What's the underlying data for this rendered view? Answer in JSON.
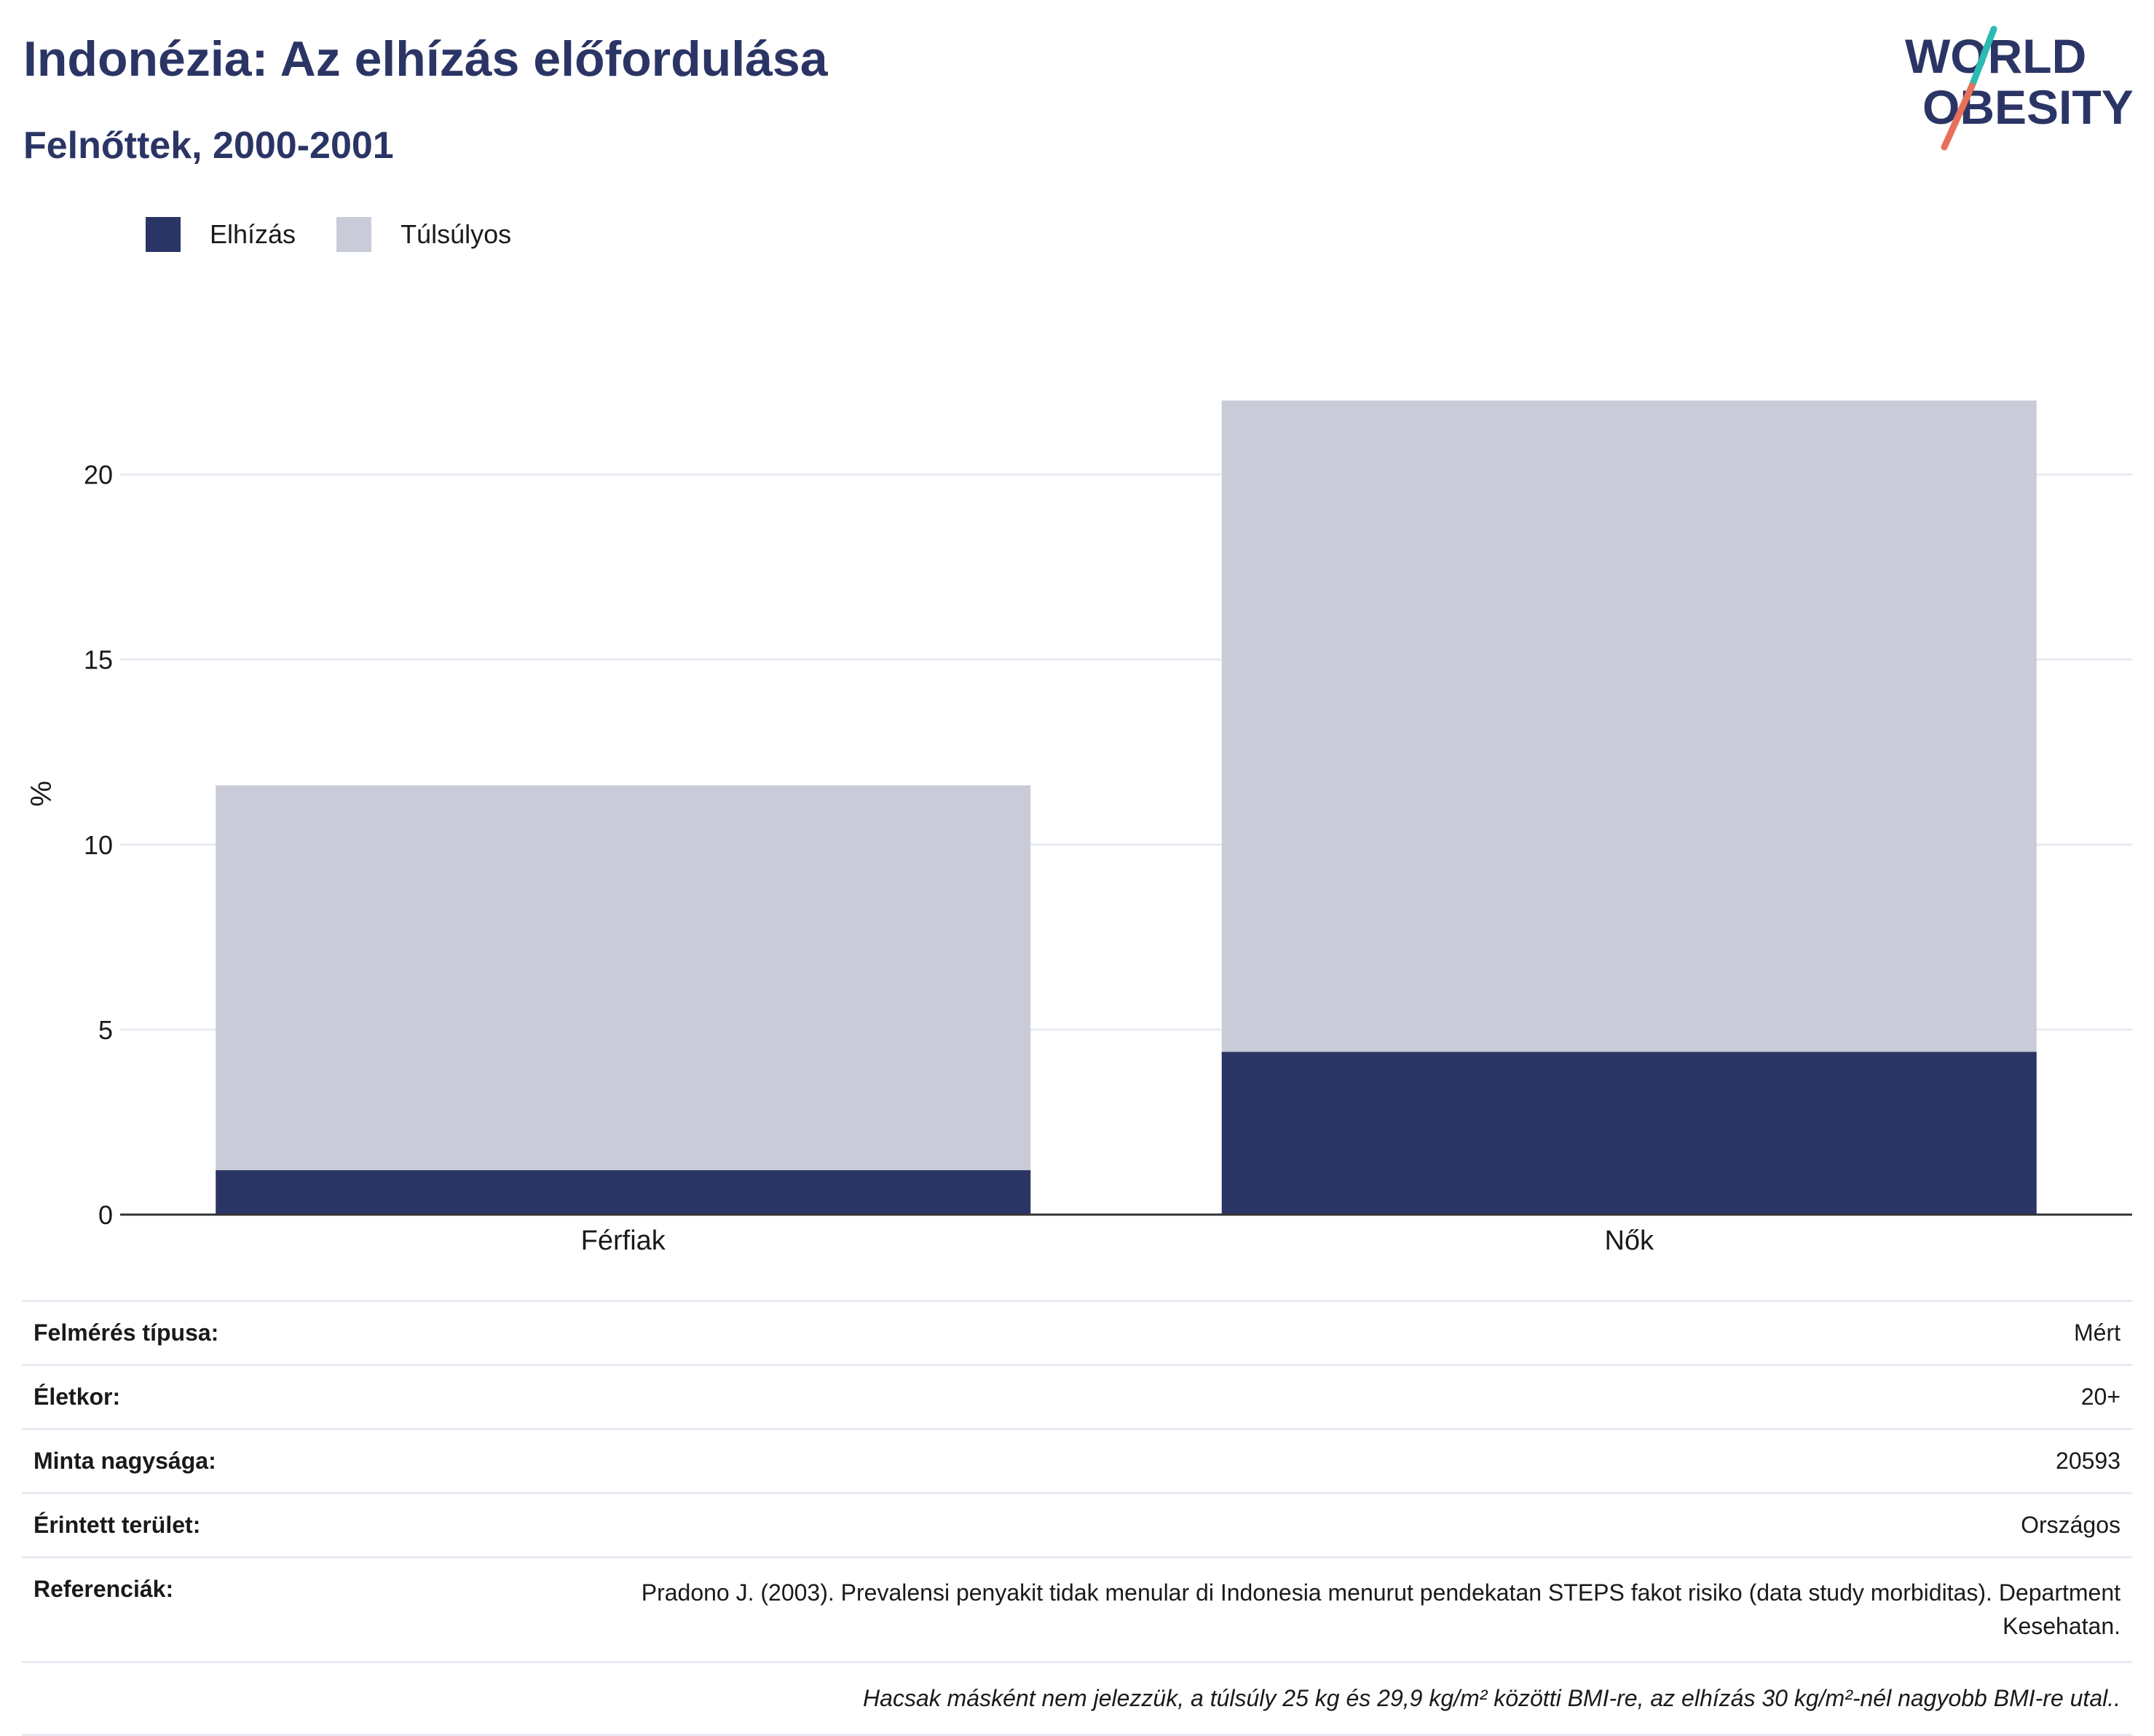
{
  "header": {
    "title": "Indonézia: Az elhízás előfordulása",
    "subtitle": "Felnőttek, 2000-2001"
  },
  "logo": {
    "line1": "WORLD",
    "line2": "OBESITY",
    "accent_teal": "#2bbbb3",
    "accent_coral": "#e8705a",
    "text_color": "#2b3565"
  },
  "legend": [
    {
      "label": "Elhízás",
      "color": "#2b3565"
    },
    {
      "label": "Túlsúlyos",
      "color": "#c9ccd8"
    }
  ],
  "chart_data": {
    "type": "bar",
    "stacked": true,
    "categories": [
      "Férfiak",
      "Nők"
    ],
    "series": [
      {
        "name": "Elhízás",
        "values": [
          1.2,
          4.4
        ],
        "color": "#2b3565"
      },
      {
        "name": "Túlsúlyos",
        "values": [
          10.4,
          17.6
        ],
        "color": "#c9ccd8"
      }
    ],
    "ylabel": "%",
    "ylim": [
      0,
      22
    ],
    "yticks": [
      0,
      5,
      10,
      15,
      20
    ],
    "grid": true
  },
  "info": {
    "rows": [
      {
        "key": "Felmérés típusa:",
        "value": "Mért"
      },
      {
        "key": "Életkor:",
        "value": "20+"
      },
      {
        "key": "Minta nagysága:",
        "value": "20593"
      },
      {
        "key": "Érintett terület:",
        "value": "Országos"
      },
      {
        "key": "Referenciák:",
        "value": "Pradono J. (2003). Prevalensi penyakit tidak menular di Indonesia menurut pendekatan STEPS fakot risiko (data study morbiditas). Department Kesehatan."
      }
    ],
    "note": "Hacsak másként nem jelezzük, a túlsúly 25 kg és 29,9 kg/m² közötti BMI-re, az elhízás 30 kg/m²-nél nagyobb BMI-re utal.."
  }
}
